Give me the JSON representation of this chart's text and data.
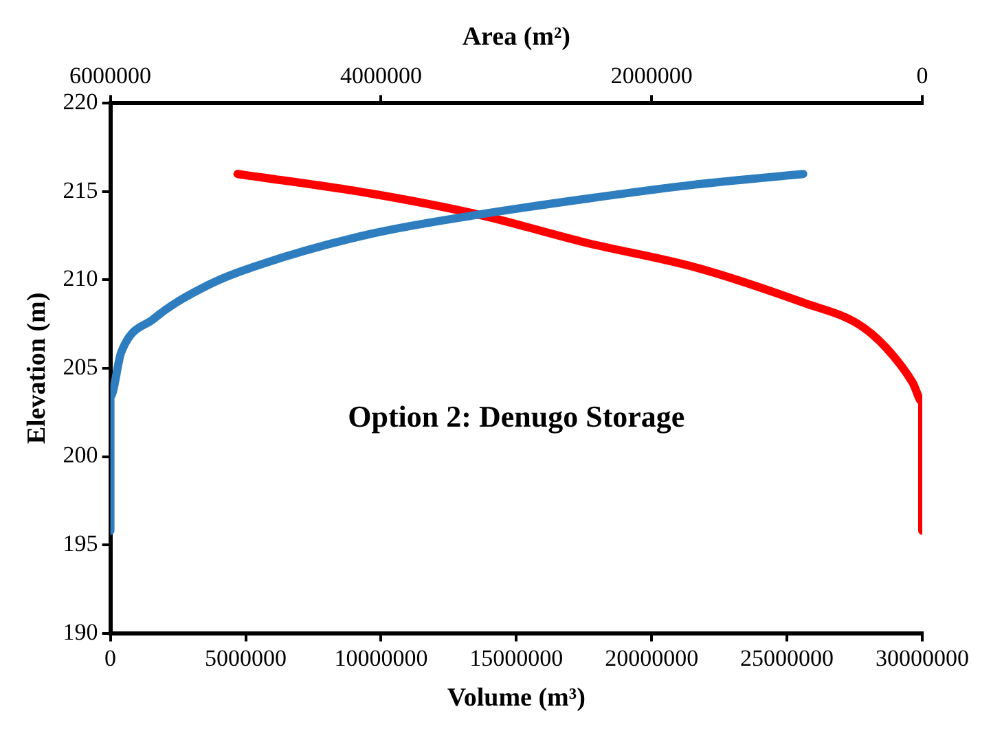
{
  "chart_data": {
    "type": "line",
    "xlabel": "Volume (m³)",
    "x2label": "Area (m²)",
    "ylabel": "Elevation (m)",
    "annotations": [
      "Option 2: Denugo Storage"
    ],
    "series": [
      {
        "color": "#2e7ebf",
        "x": [
          0,
          0,
          400000,
          1600000,
          3600000,
          5600000,
          9600000,
          13600000,
          17600000,
          21600000,
          25600000
        ],
        "values": [
          195.8,
          203.4,
          205.9,
          207.8,
          209.7,
          210.9,
          212.6,
          213.7,
          214.6,
          215.4,
          216.0
        ]
      },
      {
        "color": "#ff0000",
        "axis": "x2",
        "x": [
          0,
          0,
          72000,
          272000,
          473000,
          873000,
          1670000,
          2480000,
          3280000,
          4080000,
          5060000
        ],
        "values": [
          195.8,
          203.1,
          204.2,
          206.2,
          207.5,
          208.7,
          210.7,
          212.1,
          213.7,
          214.9,
          216.0
        ]
      }
    ],
    "xlim": [
      0,
      30000000
    ],
    "xticks": [
      0,
      5000000,
      10000000,
      15000000,
      20000000,
      25000000,
      30000000
    ],
    "x2lim": [
      6000000,
      0
    ],
    "x2ticks": [
      6000000,
      4000000,
      2000000,
      0
    ],
    "ylim": [
      190,
      220
    ],
    "yticks": [
      190,
      195,
      200,
      205,
      210,
      215,
      220
    ],
    "grid": false,
    "legend": false,
    "marker": "none",
    "line_style": "solid"
  }
}
